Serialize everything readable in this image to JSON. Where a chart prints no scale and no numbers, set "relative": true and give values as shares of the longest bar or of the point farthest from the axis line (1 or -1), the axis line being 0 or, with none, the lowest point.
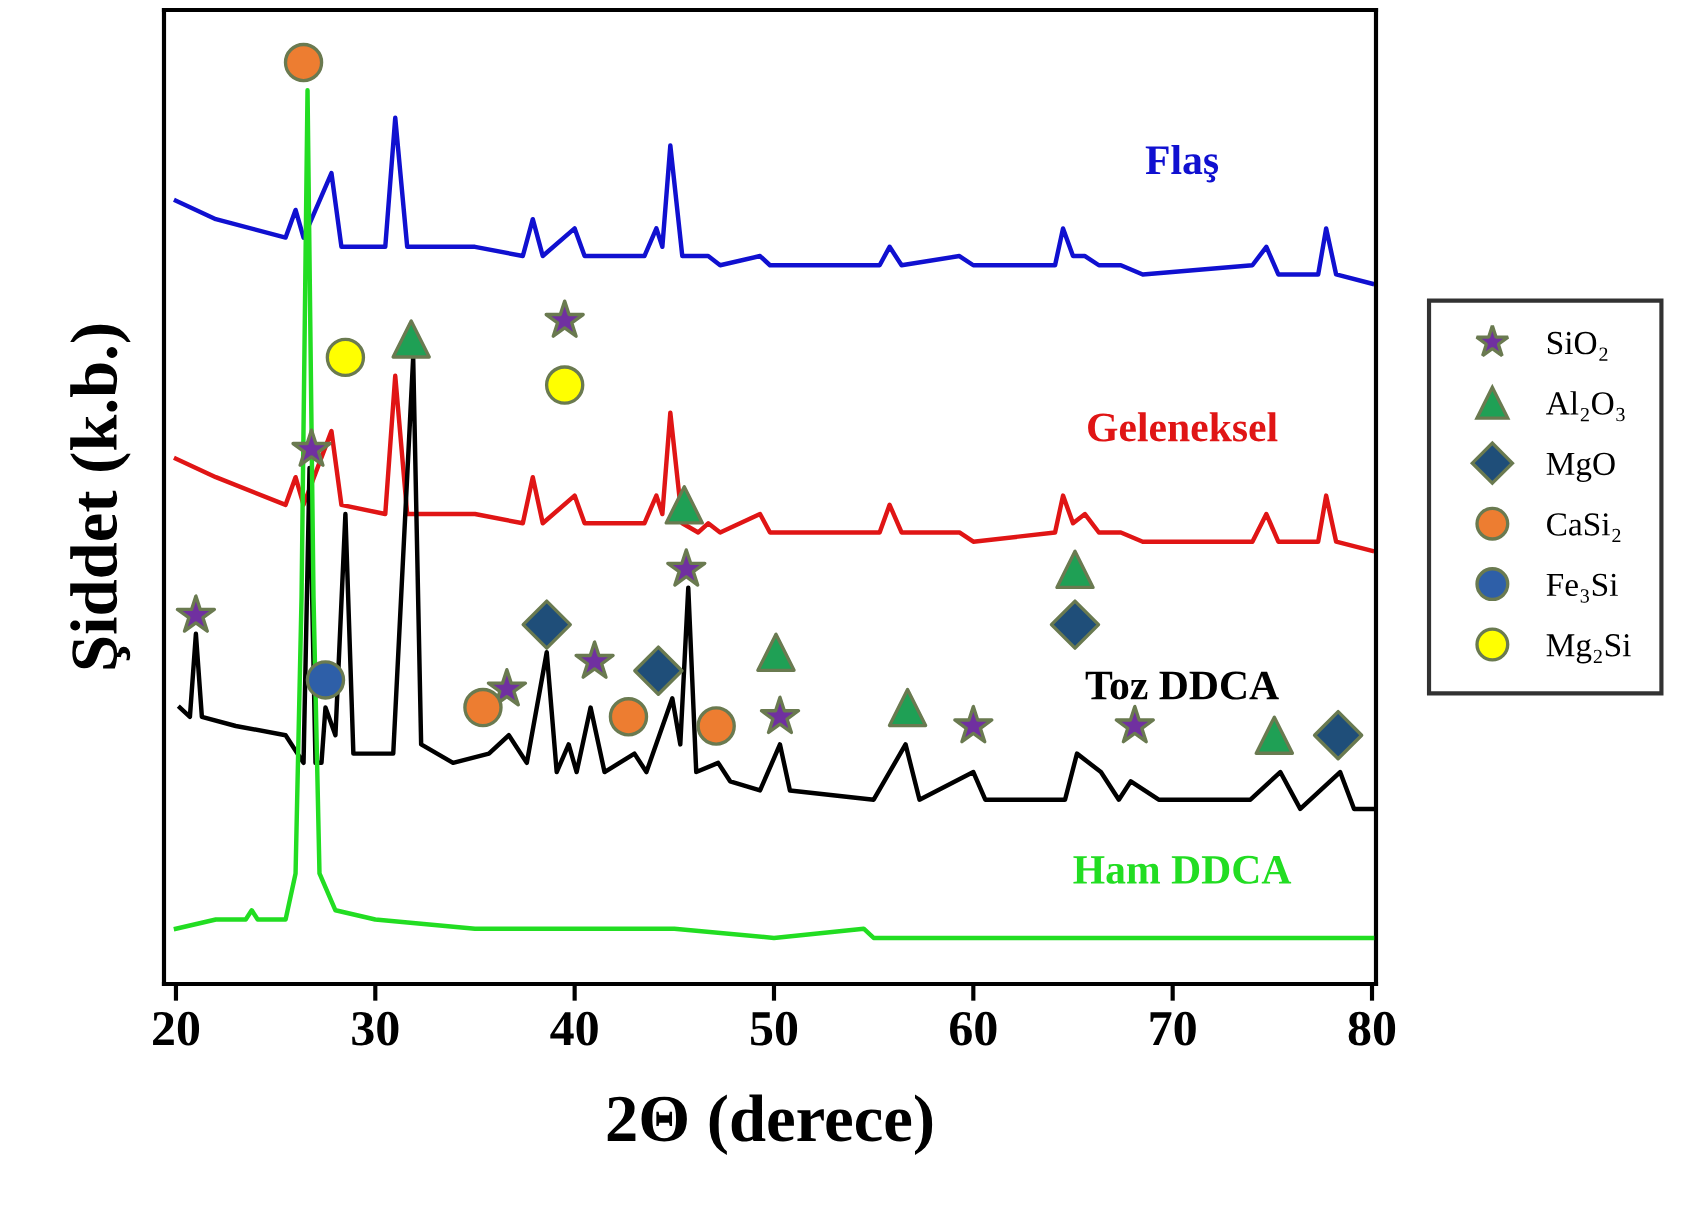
{
  "chart_data": {
    "type": "line",
    "relative": true,
    "xlabel": "2Θ (derece)",
    "ylabel": "Şiddet (k.b.)",
    "xlim": [
      19.4,
      80.2
    ],
    "xticks": [
      20,
      30,
      40,
      50,
      60,
      70,
      80
    ],
    "grid": false,
    "legend": "right",
    "line_style": "solid",
    "marker": "none",
    "series": [
      {
        "name": "Flaş",
        "color": "#1010d0",
        "x": [
          20,
          22,
          25.5,
          26.0,
          26.4,
          27.8,
          28.3,
          30.5,
          31.0,
          31.6,
          35,
          37.4,
          37.9,
          38.4,
          40.0,
          40.5,
          43.5,
          44.1,
          44.4,
          44.8,
          45.4,
          46.2,
          46.7,
          47.3,
          49.3,
          49.8,
          55.3,
          55.8,
          56.4,
          59.3,
          60,
          64.1,
          64.5,
          65.0,
          65.6,
          66.3,
          67.4,
          68.5,
          74.0,
          74.7,
          75.3,
          77.3,
          77.7,
          78.2,
          80
        ],
        "values": [
          0.85,
          0.83,
          0.81,
          0.84,
          0.81,
          0.88,
          0.8,
          0.8,
          0.94,
          0.8,
          0.8,
          0.79,
          0.83,
          0.79,
          0.82,
          0.79,
          0.79,
          0.82,
          0.8,
          0.91,
          0.79,
          0.79,
          0.79,
          0.78,
          0.79,
          0.78,
          0.78,
          0.8,
          0.78,
          0.79,
          0.78,
          0.78,
          0.82,
          0.79,
          0.79,
          0.78,
          0.78,
          0.77,
          0.78,
          0.8,
          0.77,
          0.77,
          0.82,
          0.77,
          0.76
        ]
      },
      {
        "name": "Geleneksel",
        "color": "#e01515",
        "x": [
          20,
          22,
          25.5,
          26.0,
          26.4,
          27.8,
          28.3,
          30.5,
          31.0,
          31.6,
          35,
          37.4,
          37.9,
          38.4,
          40.0,
          40.5,
          43.5,
          44.1,
          44.4,
          44.8,
          45.4,
          46.2,
          46.7,
          47.3,
          49.3,
          49.8,
          55.3,
          55.8,
          56.4,
          59.3,
          60,
          64.1,
          64.5,
          65.0,
          65.6,
          66.3,
          67.4,
          68.5,
          74.0,
          74.7,
          75.3,
          77.3,
          77.7,
          78.2,
          80
        ],
        "values": [
          0.57,
          0.55,
          0.52,
          0.55,
          0.52,
          0.6,
          0.52,
          0.51,
          0.66,
          0.51,
          0.51,
          0.5,
          0.55,
          0.5,
          0.53,
          0.5,
          0.5,
          0.53,
          0.51,
          0.62,
          0.5,
          0.49,
          0.5,
          0.49,
          0.51,
          0.49,
          0.49,
          0.52,
          0.49,
          0.49,
          0.48,
          0.49,
          0.53,
          0.5,
          0.51,
          0.49,
          0.49,
          0.48,
          0.48,
          0.51,
          0.48,
          0.48,
          0.53,
          0.48,
          0.47
        ]
      },
      {
        "name": "Toz DDCA",
        "color": "#000000",
        "x": [
          20.2,
          20.7,
          21.0,
          21.3,
          23,
          25.5,
          26.4,
          26.7,
          27.0,
          27.3,
          27.5,
          28.0,
          28.5,
          28.9,
          30.9,
          31.9,
          32.3,
          33.9,
          35.7,
          36.7,
          37.6,
          38.6,
          39.1,
          39.7,
          40.1,
          40.8,
          41.5,
          43.0,
          43.6,
          44.9,
          45.3,
          45.7,
          46.1,
          47.2,
          47.8,
          49.3,
          50.3,
          50.8,
          55.0,
          56.6,
          57.3,
          60.0,
          60.6,
          64.6,
          65.2,
          66.4,
          67.3,
          67.9,
          69.3,
          73.9,
          75.4,
          76.4,
          78.4,
          79.1,
          80
        ],
        "values": [
          0.3,
          0.29,
          0.38,
          0.29,
          0.28,
          0.27,
          0.24,
          0.56,
          0.24,
          0.24,
          0.3,
          0.27,
          0.51,
          0.25,
          0.25,
          0.68,
          0.26,
          0.24,
          0.25,
          0.27,
          0.24,
          0.36,
          0.23,
          0.26,
          0.23,
          0.3,
          0.23,
          0.25,
          0.23,
          0.31,
          0.26,
          0.43,
          0.23,
          0.24,
          0.22,
          0.21,
          0.26,
          0.21,
          0.2,
          0.26,
          0.2,
          0.23,
          0.2,
          0.2,
          0.25,
          0.23,
          0.2,
          0.22,
          0.2,
          0.2,
          0.23,
          0.19,
          0.23,
          0.19,
          0.19
        ]
      },
      {
        "name": "Ham DDCA",
        "color": "#22dd22",
        "x": [
          20,
          22,
          23.5,
          23.8,
          24.1,
          25.5,
          26.0,
          26.3,
          26.6,
          26.9,
          27.2,
          28,
          30,
          35,
          40,
          44.5,
          45,
          50,
          54.5,
          55,
          60,
          70,
          77.5,
          78,
          80
        ],
        "values": [
          0.06,
          0.07,
          0.07,
          0.08,
          0.07,
          0.07,
          0.12,
          0.42,
          0.97,
          0.42,
          0.12,
          0.08,
          0.07,
          0.06,
          0.06,
          0.06,
          0.06,
          0.05,
          0.06,
          0.05,
          0.05,
          0.05,
          0.05,
          0.05,
          0.05
        ]
      },
      {
        "name": "SiO₂",
        "type": "scatter",
        "marker": "star",
        "color": "#7030a0",
        "x": [
          21.0,
          26.8,
          36.6,
          39.5,
          41.0,
          45.6,
          50.3,
          60.0,
          68.1
        ],
        "values": [
          0.4,
          0.58,
          0.32,
          0.72,
          0.35,
          0.45,
          0.29,
          0.28,
          0.28
        ]
      },
      {
        "name": "Al₂O₃",
        "type": "scatter",
        "marker": "triangle",
        "color": "#1fa055",
        "x": [
          31.8,
          45.5,
          50.1,
          56.7,
          65.1,
          75.1
        ],
        "values": [
          0.7,
          0.52,
          0.36,
          0.3,
          0.45,
          0.27
        ]
      },
      {
        "name": "MgO",
        "type": "scatter",
        "marker": "diamond",
        "color": "#1f4e79",
        "x": [
          38.6,
          44.2,
          65.1,
          78.3
        ],
        "values": [
          0.39,
          0.34,
          0.39,
          0.27
        ]
      },
      {
        "name": "CaSi₂",
        "type": "scatter",
        "marker": "circle",
        "color": "#ed7d31",
        "x": [
          26.4,
          35.4,
          42.7,
          47.1
        ],
        "values": [
          1.0,
          0.3,
          0.29,
          0.28
        ]
      },
      {
        "name": "Fe₃Si",
        "type": "scatter",
        "marker": "circle",
        "color": "#2e5fa8",
        "x": [
          27.5
        ],
        "values": [
          0.33
        ]
      },
      {
        "name": "Mg₂Si",
        "type": "scatter",
        "marker": "circle",
        "color": "#ffff00",
        "x": [
          28.5,
          39.5
        ],
        "values": [
          0.68,
          0.65
        ]
      }
    ]
  }
}
